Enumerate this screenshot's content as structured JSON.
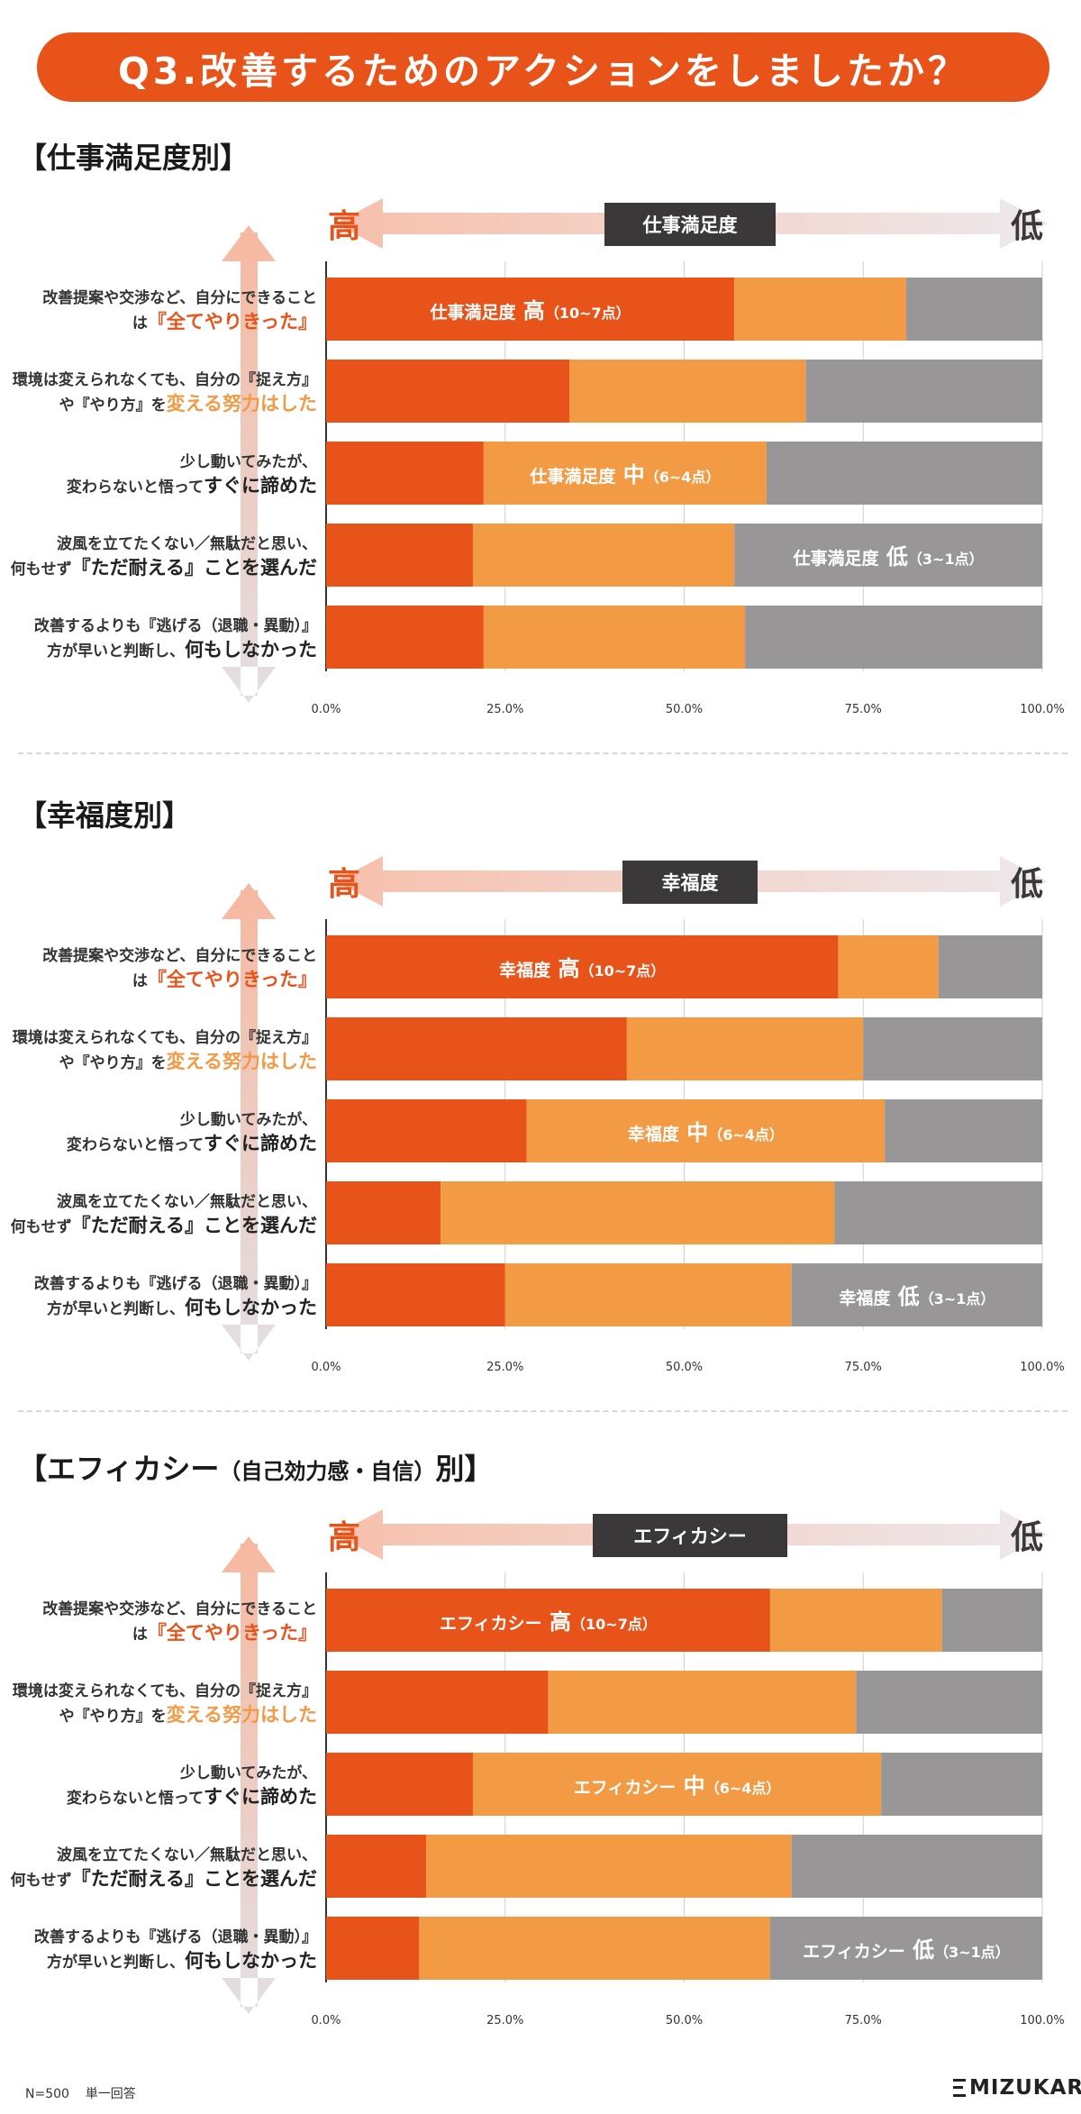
{
  "title": "Q3.改善するためのアクションをしましたか？",
  "footer": {
    "n": "N=500",
    "answer_type": "単一回答",
    "logo": "MIZUKARA"
  },
  "colors": {
    "high": "#e8531a",
    "mid": "#f39a45",
    "low": "#999698",
    "banner": "#e8531a",
    "label_box": "#3b3839"
  },
  "scale": {
    "high": "高",
    "low": "低"
  },
  "categories": [
    {
      "line1": "改善提案や交渉など、自分にできること",
      "line2_pre": "は",
      "line2_em": "『全てやりきった』",
      "line2_post": "",
      "em_color": "#e8531a"
    },
    {
      "line1": "環境は変えられなくても、自分の『捉え方』",
      "line2_pre": "や『やり方』を",
      "line2_em": "変える努力はした",
      "line2_post": "",
      "em_color": "#f39a45"
    },
    {
      "line1": "少し動いてみたが、",
      "line2_pre": "変わらないと悟って",
      "line2_em": "すぐに諦めた",
      "line2_post": "",
      "em_color": "#222222"
    },
    {
      "line1": "波風を立てたくない／無駄だと思い、",
      "line2_pre": "何もせず",
      "line2_em": "『ただ耐える』ことを選んだ",
      "line2_post": "",
      "em_color": "#222222"
    },
    {
      "line1": "改善するよりも『逃げる（退職・異動）』",
      "line2_pre": "方が早いと判断し、",
      "line2_em": "何もしなかった",
      "line2_post": "",
      "em_color": "#222222"
    }
  ],
  "chart_data": [
    {
      "type": "bar",
      "title": "【仕事満足度別】",
      "scale_label": "仕事満足度",
      "ticks": [
        "0.0%",
        "25.0%",
        "50.0%",
        "75.0%",
        "100.0%"
      ],
      "xlim": [
        0,
        100
      ],
      "series": [
        {
          "key": "high",
          "label_main": "仕事満足度",
          "label_level": "高",
          "label_range": "（10~7点）",
          "values": [
            57,
            34,
            22,
            20.5,
            22
          ]
        },
        {
          "key": "mid",
          "label_main": "仕事満足度",
          "label_level": "中",
          "label_range": "（6~4点）",
          "values": [
            24,
            33,
            39.5,
            36.5,
            36.5
          ]
        },
        {
          "key": "low",
          "label_main": "仕事満足度",
          "label_level": "低",
          "label_range": "（3~1点）",
          "values": [
            19,
            33,
            38.5,
            43,
            41.5
          ]
        }
      ]
    },
    {
      "type": "bar",
      "title": "【幸福度別】",
      "scale_label": "幸福度",
      "ticks": [
        "0.0%",
        "25.0%",
        "50.0%",
        "75.0%",
        "100.0%"
      ],
      "xlim": [
        0,
        100
      ],
      "series": [
        {
          "key": "high",
          "label_main": "幸福度",
          "label_level": "高",
          "label_range": "（10~7点）",
          "values": [
            71.5,
            42,
            28,
            16,
            25
          ]
        },
        {
          "key": "mid",
          "label_main": "幸福度",
          "label_level": "中",
          "label_range": "（6~4点）",
          "values": [
            14,
            33,
            50,
            55,
            40
          ]
        },
        {
          "key": "low",
          "label_main": "幸福度",
          "label_level": "低",
          "label_range": "（3~1点）",
          "values": [
            14.5,
            25,
            22,
            29,
            35
          ]
        }
      ]
    },
    {
      "type": "bar",
      "title": "【エフィカシー",
      "title_paren": "（自己効力感・自信）",
      "title_tail": "別】",
      "scale_label": "エフィカシー",
      "ticks": [
        "0.0%",
        "25.0%",
        "50.0%",
        "75.0%",
        "100.0%"
      ],
      "xlim": [
        0,
        100
      ],
      "series": [
        {
          "key": "high",
          "label_main": "エフィカシー",
          "label_level": "高",
          "label_range": "（10~7点）",
          "values": [
            62,
            31,
            20.5,
            14,
            13
          ]
        },
        {
          "key": "mid",
          "label_main": "エフィカシー",
          "label_level": "中",
          "label_range": "（6~4点）",
          "values": [
            24,
            43,
            57,
            51,
            49
          ]
        },
        {
          "key": "low",
          "label_main": "エフィカシー",
          "label_level": "低",
          "label_range": "（3~1点）",
          "values": [
            14,
            26,
            22.5,
            35,
            38
          ]
        }
      ]
    }
  ]
}
